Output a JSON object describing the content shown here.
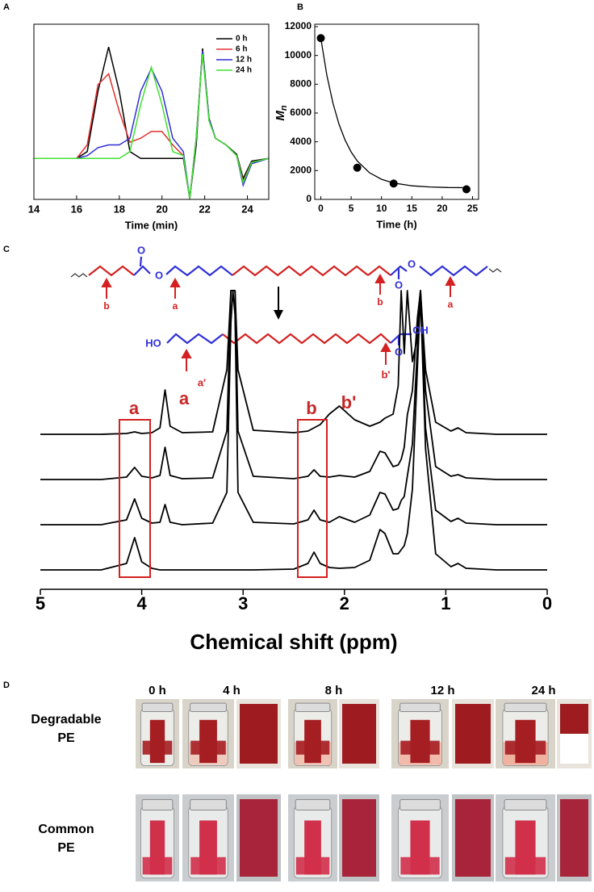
{
  "chart_data": [
    {
      "type": "line",
      "panel": "A",
      "xlabel": "Time (min)",
      "xlim": [
        14,
        25
      ],
      "xticks": [
        14,
        16,
        18,
        20,
        22,
        24
      ],
      "ylim": [
        -0.3,
        1.0
      ],
      "legend": "upper right",
      "x": [
        14,
        16,
        16.5,
        17,
        17.5,
        18,
        18.5,
        19,
        19.5,
        20,
        20.5,
        21,
        21.3,
        21.6,
        21.9,
        22.2,
        22.5,
        23,
        23.5,
        23.8,
        24.2,
        25
      ],
      "series": [
        {
          "name": "0 h",
          "color": "#000000",
          "values": [
            0,
            0,
            0.05,
            0.5,
            0.83,
            0.5,
            0.05,
            0,
            0,
            0,
            0,
            0,
            -0.3,
            0.1,
            0.82,
            0.3,
            0.15,
            0.1,
            0.03,
            -0.15,
            -0.02,
            0
          ]
        },
        {
          "name": "6 h",
          "color": "#e0302e",
          "values": [
            0,
            0,
            0.1,
            0.55,
            0.63,
            0.35,
            0.12,
            0.15,
            0.2,
            0.2,
            0.1,
            0.02,
            -0.3,
            0.15,
            0.8,
            0.3,
            0.15,
            0.1,
            0.02,
            -0.17,
            -0.03,
            0
          ]
        },
        {
          "name": "12 h",
          "color": "#2f2fd8",
          "values": [
            0,
            0,
            0.02,
            0.08,
            0.1,
            0.1,
            0.15,
            0.5,
            0.67,
            0.5,
            0.15,
            0.05,
            -0.3,
            0.15,
            0.8,
            0.3,
            0.15,
            0.1,
            0.02,
            -0.2,
            -0.04,
            0
          ]
        },
        {
          "name": "24 h",
          "color": "#3fe030",
          "values": [
            0,
            0,
            0,
            0,
            0,
            0,
            0.05,
            0.4,
            0.68,
            0.4,
            0.05,
            0.02,
            -0.3,
            0.15,
            0.78,
            0.28,
            0.15,
            0.1,
            0.02,
            -0.18,
            -0.03,
            0
          ]
        }
      ]
    },
    {
      "type": "scatter",
      "panel": "B",
      "xlabel": "Time (h)",
      "ylabel": "M",
      "ylabel_sub": "n",
      "xlim": [
        -1,
        26
      ],
      "xticks": [
        0,
        5,
        10,
        15,
        20,
        25
      ],
      "ylim": [
        0,
        12000
      ],
      "yticks": [
        0,
        2000,
        4000,
        6000,
        8000,
        10000,
        12000
      ],
      "color": "#000000",
      "x": [
        0,
        6,
        12,
        24
      ],
      "values": [
        11200,
        2200,
        1100,
        700
      ],
      "fit": {
        "x": [
          0,
          1,
          2,
          3,
          4,
          5,
          6,
          8,
          10,
          12,
          15,
          18,
          21,
          24
        ],
        "values": [
          11200,
          8616,
          6673,
          5214,
          4117,
          3293,
          2673,
          1858,
          1397,
          1137,
          944,
          861,
          826,
          811
        ]
      }
    },
    {
      "type": "spectrum",
      "panel": "C",
      "xlabel": "Chemical shift (ppm)",
      "xlim": [
        5,
        0
      ],
      "xticks": [
        5,
        4,
        3,
        2,
        1,
        0
      ],
      "color": "#000000",
      "x": [
        5.0,
        4.4,
        4.15,
        4.07,
        4.0,
        3.9,
        3.82,
        3.77,
        3.72,
        3.6,
        3.3,
        3.16,
        3.12,
        3.1,
        3.08,
        3.05,
        2.9,
        2.5,
        2.36,
        2.3,
        2.24,
        2.15,
        2.05,
        1.9,
        1.75,
        1.65,
        1.6,
        1.52,
        1.47,
        1.44,
        1.41,
        1.38,
        1.33,
        1.28,
        1.25,
        1.2,
        1.1,
        0.95,
        0.88,
        0.8,
        0.5,
        0.0
      ],
      "series": [
        {
          "values": [
            0,
            0,
            8,
            40,
            10,
            2,
            0,
            0,
            0,
            0,
            0,
            0,
            0,
            0,
            0,
            0,
            0,
            1,
            8,
            22,
            8,
            3,
            2,
            3,
            12,
            50,
            45,
            20,
            20,
            25,
            30,
            45,
            100,
            250,
            340,
            150,
            20,
            4,
            8,
            2,
            0,
            0
          ]
        },
        {
          "values": [
            0,
            0,
            6,
            32,
            8,
            2,
            3,
            25,
            3,
            0,
            2,
            40,
            250,
            290,
            260,
            40,
            3,
            1,
            6,
            18,
            6,
            3,
            10,
            3,
            12,
            40,
            38,
            18,
            20,
            30,
            35,
            60,
            100,
            220,
            290,
            120,
            18,
            4,
            8,
            2,
            0,
            0
          ]
        },
        {
          "values": [
            0,
            0,
            3,
            15,
            4,
            2,
            5,
            40,
            5,
            1,
            2,
            60,
            234,
            234,
            234,
            60,
            4,
            1,
            4,
            12,
            4,
            3,
            5,
            3,
            10,
            35,
            33,
            16,
            18,
            25,
            40,
            80,
            110,
            200,
            234,
            110,
            16,
            4,
            6,
            2,
            0,
            0
          ]
        },
        {
          "values": [
            0,
            0,
            1,
            3,
            1,
            2,
            8,
            55,
            10,
            2,
            3,
            80,
            178,
            178,
            178,
            80,
            5,
            2,
            4,
            8,
            12,
            25,
            35,
            18,
            10,
            15,
            20,
            25,
            60,
            178,
            100,
            178,
            90,
            120,
            178,
            80,
            15,
            4,
            8,
            2,
            0,
            0
          ]
        }
      ],
      "peak_labels": [
        "a",
        "a",
        "b",
        "b'"
      ],
      "structure_labels": [
        "O",
        "O",
        "O",
        "O",
        "b",
        "a",
        "b",
        "a",
        "HO",
        "a'",
        "b'",
        "O",
        "OH"
      ]
    }
  ],
  "photos": {
    "panel": "D",
    "times": [
      "0 h",
      "4 h",
      "8 h",
      "12 h",
      "24 h"
    ],
    "rows": [
      [
        "Degradable",
        "PE"
      ],
      [
        "Common",
        "PE"
      ]
    ]
  }
}
